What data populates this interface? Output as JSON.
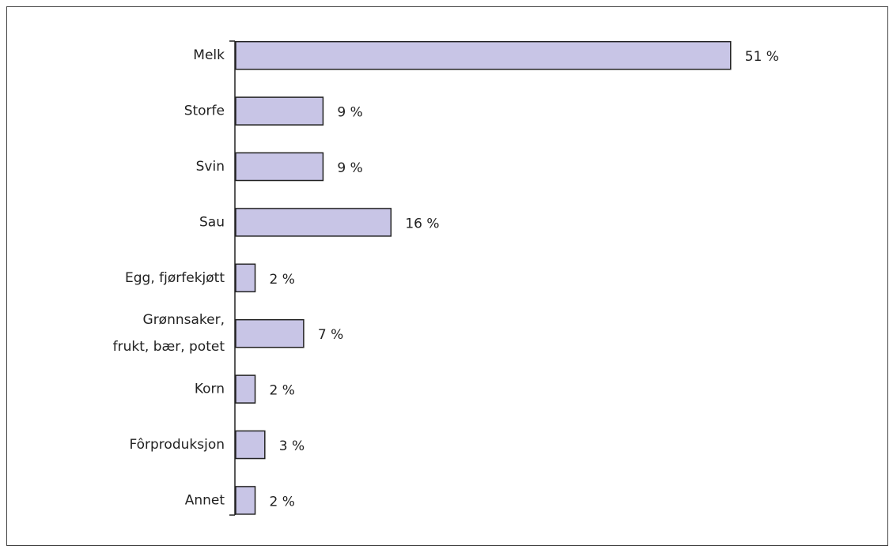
{
  "chart_data": {
    "type": "hbar",
    "categories": [
      "Melk",
      "Storfe",
      "Svin",
      "Sau",
      "Egg, fjørfekjøtt",
      [
        "Grønnsaker,",
        "frukt, bær, potet"
      ],
      "Korn",
      "Fôrproduksjon",
      "Annet"
    ],
    "values": [
      51,
      9,
      9,
      16,
      2,
      7,
      2,
      3,
      2
    ],
    "value_labels": [
      "51 %",
      "9 %",
      "9 %",
      "16 %",
      "2 %",
      "7 %",
      "2 %",
      "3 %",
      "2 %"
    ],
    "color": "#c8c5e6"
  }
}
